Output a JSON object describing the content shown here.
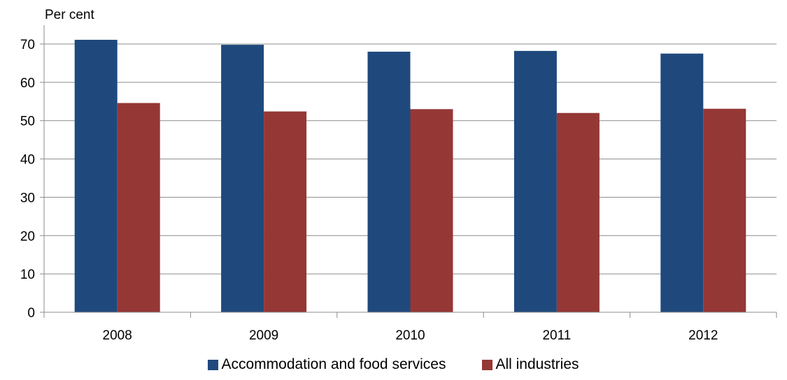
{
  "chart_data": {
    "type": "bar",
    "ylabel": "Per cent",
    "xlabel": "",
    "title": "",
    "categories": [
      "2008",
      "2009",
      "2010",
      "2011",
      "2012"
    ],
    "series": [
      {
        "name": "Accommodation and food services",
        "color": "#1F497D",
        "values": [
          71.1,
          69.8,
          68.0,
          68.2,
          67.5
        ]
      },
      {
        "name": "All industries",
        "color": "#953735",
        "values": [
          54.6,
          52.4,
          53.0,
          52.0,
          53.1
        ]
      }
    ],
    "ylim": [
      0,
      70
    ],
    "yticks": [
      0,
      10,
      20,
      30,
      40,
      50,
      60,
      70
    ],
    "grid": true,
    "legend_position": "bottom"
  }
}
